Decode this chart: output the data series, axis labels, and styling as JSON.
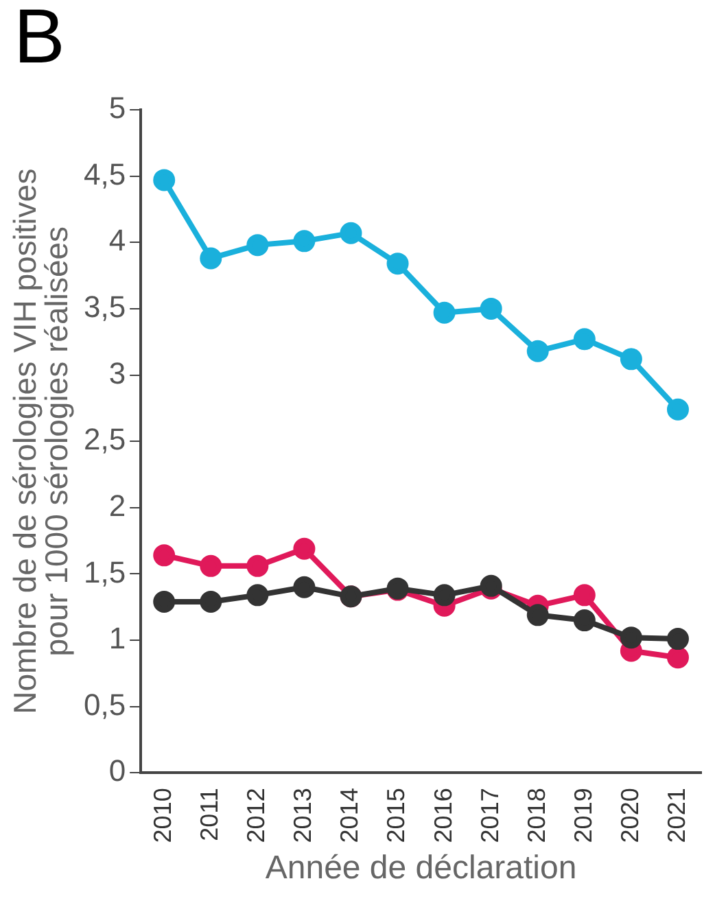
{
  "chart_data": {
    "type": "line",
    "xlabel": "Année de déclaration",
    "ylabel": "Nombre de de sérologies VIH positives\npour 1000 sérologies réalisées",
    "annotations": [
      "B"
    ],
    "categories": [
      "2010",
      "2011",
      "2012",
      "2013",
      "2014",
      "2015",
      "2016",
      "2017",
      "2018",
      "2019",
      "2020",
      "2021"
    ],
    "series": [
      {
        "color": "#1ab0dc",
        "values": [
          4.47,
          3.88,
          3.98,
          4.01,
          4.07,
          3.84,
          3.47,
          3.5,
          3.18,
          3.27,
          3.12,
          2.74
        ]
      },
      {
        "color": "#e0195a",
        "values": [
          1.64,
          1.56,
          1.56,
          1.69,
          1.33,
          1.38,
          1.26,
          1.39,
          1.26,
          1.34,
          0.92,
          0.87
        ]
      },
      {
        "color": "#333333",
        "values": [
          1.29,
          1.29,
          1.34,
          1.4,
          1.33,
          1.39,
          1.34,
          1.41,
          1.19,
          1.15,
          1.02,
          1.01
        ]
      }
    ],
    "ylim": [
      0,
      5
    ],
    "yticks": [
      0,
      {
        "value": 0.5,
        "label": "0,5"
      },
      1,
      {
        "value": 1.5,
        "label": "1,5"
      },
      2,
      {
        "value": 2.5,
        "label": "2,5"
      },
      3,
      {
        "value": 3.5,
        "label": "3,5"
      },
      4,
      {
        "value": 4.5,
        "label": "4,5"
      },
      5
    ],
    "grid": false,
    "legend": false,
    "marker": "circle",
    "line_style": "solid"
  }
}
